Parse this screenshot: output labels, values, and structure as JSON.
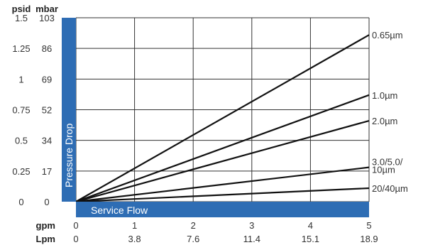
{
  "chart_data": {
    "type": "line",
    "xlabel": "Service Flow",
    "ylabel": "Pressure Drop",
    "x_units": [
      "gpm",
      "Lpm"
    ],
    "y_units": [
      "psid",
      "mbar"
    ],
    "xlim": [
      0,
      5
    ],
    "ylim": [
      0,
      1.5
    ],
    "x_ticks": {
      "gpm": [
        "0",
        "1",
        "2",
        "3",
        "4",
        "5"
      ],
      "Lpm": [
        "0",
        "3.8",
        "7.6",
        "11.4",
        "15.1",
        "18.9"
      ]
    },
    "y_ticks": {
      "psid": [
        "0",
        "0.25",
        "0.5",
        "0.75",
        "1",
        "1.25",
        "1.5"
      ],
      "mbar": [
        "0",
        "17",
        "34",
        "52",
        "69",
        "86",
        "103"
      ]
    },
    "grid": true,
    "series": [
      {
        "name": "0.65µm",
        "x": [
          0,
          5
        ],
        "y": [
          0,
          1.36
        ]
      },
      {
        "name": "1.0µm",
        "x": [
          0,
          5
        ],
        "y": [
          0,
          0.87
        ]
      },
      {
        "name": "2.0µm",
        "x": [
          0,
          5
        ],
        "y": [
          0,
          0.66
        ]
      },
      {
        "name": "3.0/5.0/ 10µm",
        "x": [
          0,
          5
        ],
        "y": [
          0,
          0.28
        ]
      },
      {
        "name": "20/40µm",
        "x": [
          0,
          5
        ],
        "y": [
          0,
          0.11
        ]
      }
    ],
    "colors": {
      "band": "#2e6db4",
      "line": "#111111",
      "grid": "#333333"
    }
  }
}
